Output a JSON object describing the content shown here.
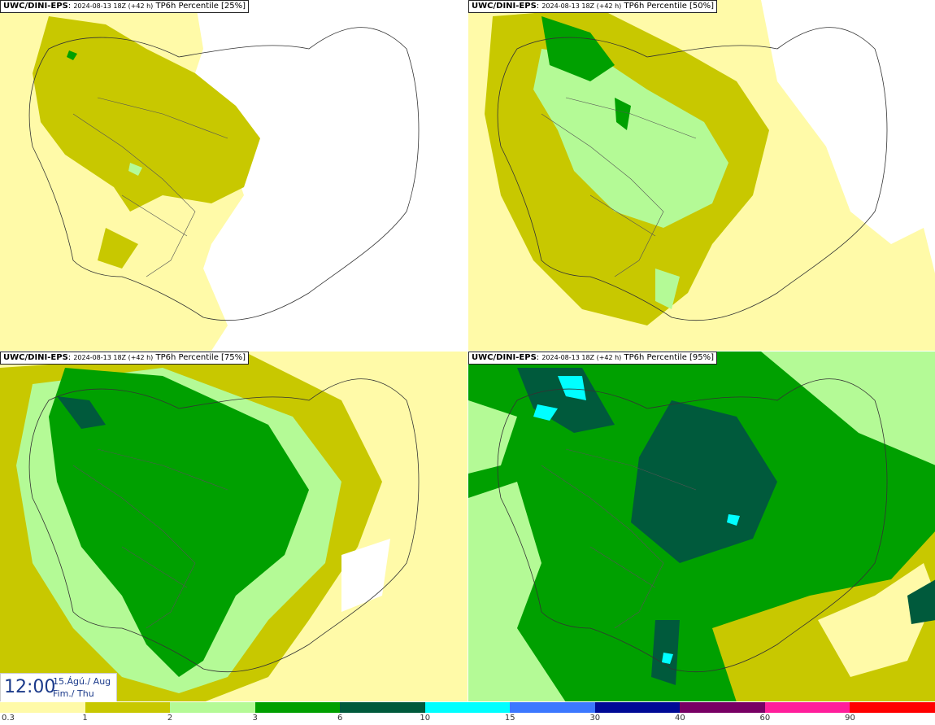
{
  "panels": [
    {
      "model": "UWC/DINI-EPS",
      "run": "2024-08-13 18Z (+42 h)",
      "field": "TP6h Percentile [25%]"
    },
    {
      "model": "UWC/DINI-EPS",
      "run": "2024-08-13 18Z (+42 h)",
      "field": "TP6h Percentile [50%]"
    },
    {
      "model": "UWC/DINI-EPS",
      "run": "2024-08-13 18Z (+42 h)",
      "field": "TP6h Percentile [75%]"
    },
    {
      "model": "UWC/DINI-EPS",
      "run": "2024-08-13 18Z (+42 h)",
      "field": "TP6h Percentile [95%]"
    }
  ],
  "valid_time": {
    "time": "12:00",
    "date": "15.Ágú./ Aug",
    "weekday": "Fim./ Thu"
  },
  "colorbar": {
    "ticks": [
      "0.3",
      "1",
      "2",
      "3",
      "6",
      "10",
      "15",
      "30",
      "40",
      "60",
      "90"
    ],
    "colors": [
      "#fffaa8",
      "#c8c800",
      "#b4fa96",
      "#00a000",
      "#005a3c",
      "#00ffff",
      "#3c78ff",
      "#000a96",
      "#780064",
      "#ff1e9b",
      "#ff0000"
    ]
  }
}
